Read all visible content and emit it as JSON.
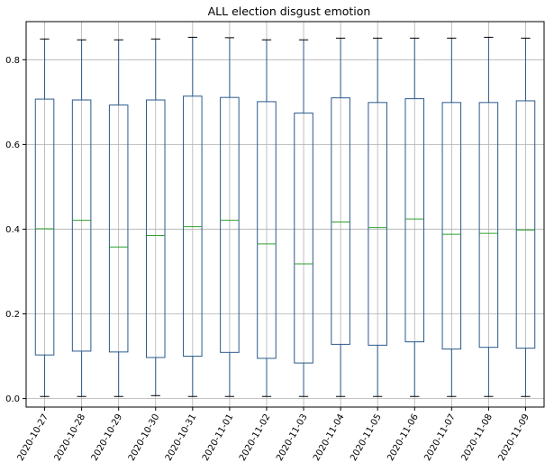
{
  "chart_data": {
    "type": "box",
    "title": "ALL election disgust emotion",
    "xlabel": "",
    "ylabel": "",
    "ylim": [
      -0.02,
      0.89
    ],
    "yticks": [
      0.0,
      0.2,
      0.4,
      0.6,
      0.8
    ],
    "ytick_labels": [
      "0.0",
      "0.2",
      "0.4",
      "0.6",
      "0.8"
    ],
    "grid": true,
    "colors": {
      "box": "#2a5a8c",
      "median": "#2ca02c",
      "cap": "#000000",
      "grid": "#b0b0b0"
    },
    "categories": [
      "2020-10-27",
      "2020-10-28",
      "2020-10-29",
      "2020-10-30",
      "2020-10-31",
      "2020-11-01",
      "2020-11-02",
      "2020-11-03",
      "2020-11-04",
      "2020-11-05",
      "2020-11-06",
      "2020-11-07",
      "2020-11-08",
      "2020-11-09"
    ],
    "boxes": [
      {
        "whislo": 0.005,
        "q1": 0.103,
        "med": 0.401,
        "q3": 0.707,
        "whishi": 0.849
      },
      {
        "whislo": 0.005,
        "q1": 0.112,
        "med": 0.421,
        "q3": 0.705,
        "whishi": 0.847
      },
      {
        "whislo": 0.005,
        "q1": 0.11,
        "med": 0.358,
        "q3": 0.693,
        "whishi": 0.847
      },
      {
        "whislo": 0.007,
        "q1": 0.097,
        "med": 0.385,
        "q3": 0.705,
        "whishi": 0.849
      },
      {
        "whislo": 0.005,
        "q1": 0.1,
        "med": 0.406,
        "q3": 0.714,
        "whishi": 0.853
      },
      {
        "whislo": 0.005,
        "q1": 0.109,
        "med": 0.421,
        "q3": 0.711,
        "whishi": 0.852
      },
      {
        "whislo": 0.005,
        "q1": 0.095,
        "med": 0.365,
        "q3": 0.701,
        "whishi": 0.847
      },
      {
        "whislo": 0.005,
        "q1": 0.084,
        "med": 0.318,
        "q3": 0.674,
        "whishi": 0.847
      },
      {
        "whislo": 0.005,
        "q1": 0.128,
        "med": 0.417,
        "q3": 0.71,
        "whishi": 0.851
      },
      {
        "whislo": 0.005,
        "q1": 0.126,
        "med": 0.404,
        "q3": 0.699,
        "whishi": 0.851
      },
      {
        "whislo": 0.005,
        "q1": 0.134,
        "med": 0.424,
        "q3": 0.708,
        "whishi": 0.851
      },
      {
        "whislo": 0.005,
        "q1": 0.117,
        "med": 0.388,
        "q3": 0.699,
        "whishi": 0.851
      },
      {
        "whislo": 0.005,
        "q1": 0.121,
        "med": 0.39,
        "q3": 0.699,
        "whishi": 0.853
      },
      {
        "whislo": 0.005,
        "q1": 0.119,
        "med": 0.398,
        "q3": 0.703,
        "whishi": 0.851
      }
    ]
  }
}
